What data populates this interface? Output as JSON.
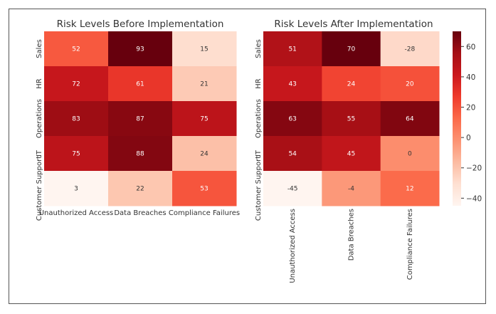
{
  "chart_data": [
    {
      "type": "heatmap",
      "title": "Risk Levels Before Implementation",
      "rows": [
        "Sales",
        "HR",
        "Operations",
        "IT",
        "Customer Support"
      ],
      "columns": [
        "Unauthorized Access",
        "Data Breaches",
        "Compliance Failures"
      ],
      "values": [
        [
          52,
          93,
          15
        ],
        [
          72,
          61,
          21
        ],
        [
          83,
          87,
          75
        ],
        [
          75,
          88,
          24
        ],
        [
          3,
          22,
          53
        ]
      ],
      "color_range": [
        3,
        93
      ],
      "colormap": "Reds"
    },
    {
      "type": "heatmap",
      "title": "Risk Levels After Implementation",
      "rows": [
        "Sales",
        "HR",
        "Operations",
        "IT",
        "Customer Support"
      ],
      "columns": [
        "Unauthorized Access",
        "Data Breaches",
        "Compliance Failures"
      ],
      "values": [
        [
          51,
          70,
          -28
        ],
        [
          43,
          24,
          20
        ],
        [
          63,
          55,
          64
        ],
        [
          54,
          45,
          0
        ],
        [
          -45,
          -4,
          12
        ]
      ],
      "color_range": [
        -45,
        70
      ],
      "colormap": "Reds",
      "colorbar_ticks": [
        60,
        40,
        20,
        0,
        -20,
        -40
      ]
    }
  ],
  "colors": {
    "low": "#fff5f0",
    "high": "#67000d"
  }
}
